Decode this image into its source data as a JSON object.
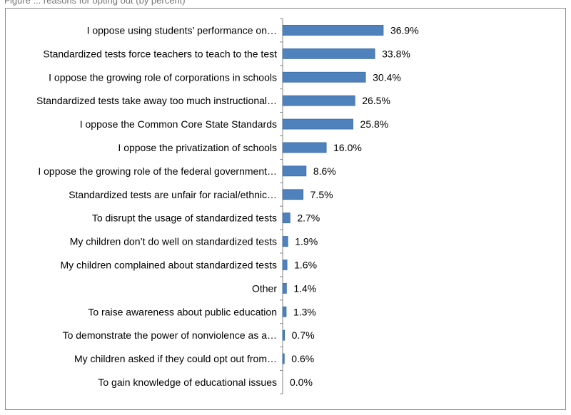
{
  "caption": "Figure ... reasons for opting out (by percent)",
  "colors": {
    "bar": "#4f81bd",
    "bar_edge": "#3a6aa3",
    "axis": "#868686",
    "frame": "#8c8c8c"
  },
  "chart_data": {
    "type": "bar",
    "orientation": "horizontal",
    "categories": [
      "I oppose using students’ performance on…",
      "Standardized tests force teachers to teach to the test",
      "I oppose the growing role of corporations in schools",
      "Standardized tests take away too much instructional…",
      "I oppose the Common Core State Standards",
      "I oppose the privatization of schools",
      "I oppose the growing role of the federal government…",
      "Standardized tests are unfair for racial/ethnic…",
      "To disrupt the usage of standardized tests",
      "My children don’t do well on standardized tests",
      "My children complained about standardized tests",
      "Other",
      "To raise awareness about public education",
      "To demonstrate the power of nonviolence as a…",
      "My children asked if they could opt out from…",
      "To gain knowledge of educational issues"
    ],
    "values": [
      36.9,
      33.8,
      30.4,
      26.5,
      25.8,
      16.0,
      8.6,
      7.5,
      2.7,
      1.9,
      1.6,
      1.4,
      1.3,
      0.7,
      0.6,
      0.0
    ],
    "value_labels": [
      "36.9%",
      "33.8%",
      "30.4%",
      "26.5%",
      "25.8%",
      "16.0%",
      "8.6%",
      "7.5%",
      "2.7%",
      "1.9%",
      "1.6%",
      "1.4%",
      "1.3%",
      "0.7%",
      "0.6%",
      "0.0%"
    ],
    "xlim": [
      0,
      100
    ],
    "title": "",
    "xlabel": "",
    "ylabel": "",
    "grid": false,
    "legend": "none"
  }
}
